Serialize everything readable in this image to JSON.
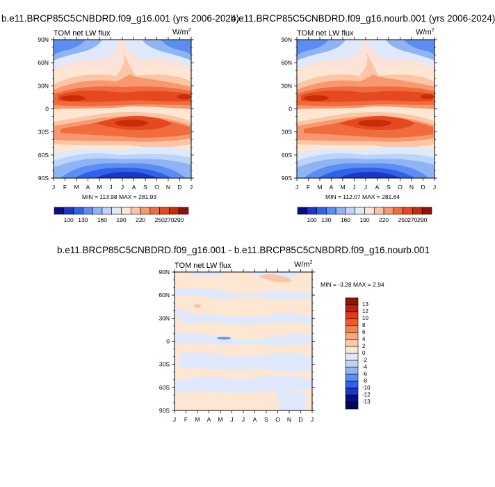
{
  "panels": [
    {
      "title": "b.e11.BRCP85C5CNBDRD.f09_g16.001 (yrs 2006-2024)",
      "left_label": "TOM net LW flux",
      "units_main": "W/m",
      "units_sup": "2",
      "min_max": "MIN = 113.98 MAX = 281.93"
    },
    {
      "title": "b.e11.BRCP85C5CNBDRD.f09_g16.nourb.001 (yrs 2006-2024)",
      "left_label": "TOM net LW flux",
      "units_main": "W/m",
      "units_sup": "2",
      "min_max": "MIN = 112.07 MAX = 281.64"
    },
    {
      "title": "b.e11.BRCP85C5CNBDRD.f09_g16.001 - b.e11.BRCP85C5CNBDRD.f09_g16.nourb.001",
      "left_label": "TOM net LW flux",
      "units_main": "W/m",
      "units_sup": "2",
      "min_max": "MIN =  -3.28 MAX =   2.94"
    }
  ],
  "chart_data": [
    {
      "type": "heatmap",
      "title": "b.e11.BRCP85C5CNBDRD.f09_g16.001 (yrs 2006-2024)",
      "xlabel": "",
      "ylabel": "",
      "x_ticks": [
        "J",
        "F",
        "M",
        "A",
        "M",
        "J",
        "J",
        "A",
        "S",
        "O",
        "N",
        "D",
        "J"
      ],
      "y_ticks": [
        "90N",
        "60N",
        "30N",
        "0",
        "30S",
        "60S",
        "90S"
      ],
      "colorbar_labels": [
        "100",
        "130",
        "160",
        "190",
        "220",
        "250",
        "270",
        "290"
      ],
      "colorbar_colors": [
        "#0b0b8a",
        "#1e35c9",
        "#2f62e8",
        "#5c8df2",
        "#8fb4f6",
        "#bcd4f8",
        "#dfe9fb",
        "#fde6d2",
        "#fbc5a6",
        "#f7986e",
        "#f06c3f",
        "#e6481f",
        "#c82c0a",
        "#8e1505"
      ],
      "min": 113.98,
      "max": 281.93
    },
    {
      "type": "heatmap",
      "title": "b.e11.BRCP85C5CNBDRD.f09_g16.nourb.001 (yrs 2006-2024)",
      "xlabel": "",
      "ylabel": "",
      "x_ticks": [
        "J",
        "F",
        "M",
        "A",
        "M",
        "J",
        "J",
        "A",
        "S",
        "O",
        "N",
        "D",
        "J"
      ],
      "y_ticks": [
        "90N",
        "60N",
        "30N",
        "0",
        "30S",
        "60S",
        "90S"
      ],
      "colorbar_labels": [
        "100",
        "130",
        "160",
        "190",
        "220",
        "250",
        "270",
        "290"
      ],
      "colorbar_colors": [
        "#0b0b8a",
        "#1e35c9",
        "#2f62e8",
        "#5c8df2",
        "#8fb4f6",
        "#bcd4f8",
        "#dfe9fb",
        "#fde6d2",
        "#fbc5a6",
        "#f7986e",
        "#f06c3f",
        "#e6481f",
        "#c82c0a",
        "#8e1505"
      ],
      "min": 112.07,
      "max": 281.64
    },
    {
      "type": "heatmap",
      "title": "b.e11.BRCP85C5CNBDRD.f09_g16.001 - b.e11.BRCP85C5CNBDRD.f09_g16.nourb.001",
      "xlabel": "",
      "ylabel": "",
      "x_ticks": [
        "J",
        "F",
        "M",
        "A",
        "M",
        "J",
        "J",
        "A",
        "S",
        "O",
        "N",
        "D",
        "J"
      ],
      "y_ticks": [
        "90N",
        "60N",
        "30N",
        "0",
        "30S",
        "60S",
        "90S"
      ],
      "colorbar_labels": [
        "13",
        "12",
        "10",
        "8",
        "6",
        "4",
        "2",
        "0",
        "-2",
        "-4",
        "-6",
        "-8",
        "-10",
        "-12",
        "-13"
      ],
      "colorbar_colors": [
        "#8e1505",
        "#c01f0a",
        "#e0381a",
        "#ee5a2e",
        "#f5834f",
        "#f9a77c",
        "#fcc9a8",
        "#fde6d2",
        "#dfe9fb",
        "#bcd4f8",
        "#8fb4f6",
        "#5c8df2",
        "#2f62e8",
        "#1e35c9",
        "#0b0b8a",
        "#05055e"
      ],
      "min": -3.28,
      "max": 2.94
    }
  ]
}
